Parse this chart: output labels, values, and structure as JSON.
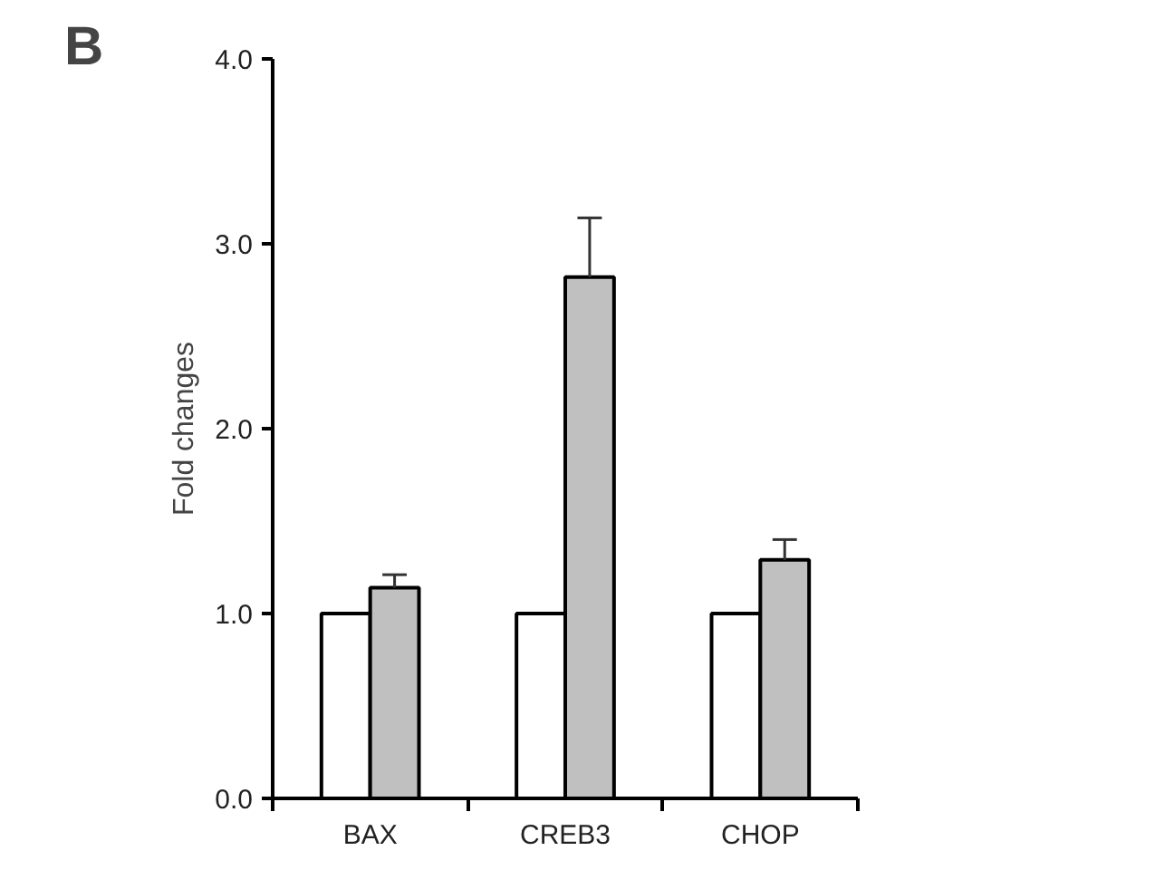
{
  "chart_data": {
    "type": "bar",
    "ylabel": "Fold changes",
    "annotations": [
      "B"
    ],
    "categories": [
      "BAX",
      "CREB3",
      "CHOP"
    ],
    "series": [
      {
        "color": "#ffffff",
        "values": [
          1.0,
          1.0,
          1.0
        ]
      },
      {
        "color": "#c0c0c0",
        "values": [
          1.14,
          2.82,
          1.29
        ],
        "errors": [
          [
            1.14,
            1.21
          ],
          [
            2.82,
            3.14
          ],
          [
            1.29,
            1.4
          ]
        ]
      }
    ],
    "ylim": [
      0,
      4
    ],
    "yticks": [
      {
        "value": 0,
        "label": "0.0"
      },
      {
        "value": 1,
        "label": "1.0"
      },
      {
        "value": 2,
        "label": "2.0"
      },
      {
        "value": 3,
        "label": "3.0"
      },
      {
        "value": 4,
        "label": "4.0"
      }
    ],
    "grid": false
  }
}
